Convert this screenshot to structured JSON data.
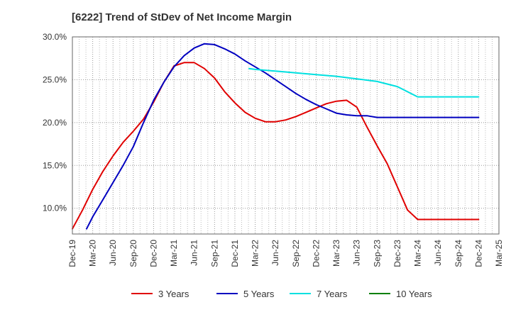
{
  "chart_data": {
    "type": "line",
    "title": "[6222]  Trend of StDev of Net Income Margin",
    "x_ticks": [
      "Dec-19",
      "Mar-20",
      "Jun-20",
      "Sep-20",
      "Dec-20",
      "Mar-21",
      "Jun-21",
      "Sep-21",
      "Dec-21",
      "Mar-22",
      "Jun-22",
      "Sep-22",
      "Dec-22",
      "Mar-23",
      "Jun-23",
      "Sep-23",
      "Dec-23",
      "Mar-24",
      "Jun-24",
      "Sep-24",
      "Dec-24",
      "Mar-25"
    ],
    "y_ticks": [
      "10.0%",
      "15.0%",
      "20.0%",
      "25.0%",
      "30.0%"
    ],
    "y_tick_values": [
      10,
      15,
      20,
      25,
      30
    ],
    "ylim": [
      7,
      30
    ],
    "xlim": [
      0,
      21
    ],
    "grid": true,
    "legend_position": "bottom",
    "series": [
      {
        "name": "3 Years",
        "color": "#e00000",
        "x": [
          0,
          0.5,
          1,
          1.5,
          2,
          2.5,
          3,
          3.5,
          4,
          4.5,
          5,
          5.5,
          6,
          6.5,
          7,
          7.5,
          8,
          8.5,
          9,
          9.5,
          10,
          10.5,
          11,
          11.5,
          12,
          12.5,
          13,
          13.5,
          14,
          14.5,
          15,
          15.5,
          16,
          16.5,
          17,
          17.5,
          18,
          18.5,
          19,
          19.5,
          20
        ],
        "values": [
          7.6,
          9.8,
          12.2,
          14.3,
          16.1,
          17.7,
          19.0,
          20.4,
          22.4,
          24.7,
          26.6,
          27.0,
          27.0,
          26.3,
          25.2,
          23.6,
          22.3,
          21.2,
          20.5,
          20.1,
          20.1,
          20.3,
          20.7,
          21.2,
          21.7,
          22.2,
          22.5,
          22.6,
          21.8,
          19.5,
          17.3,
          15.2,
          12.5,
          9.8,
          8.7,
          8.7,
          8.7,
          8.7,
          8.7,
          8.7,
          8.7
        ]
      },
      {
        "name": "5 Years",
        "color": "#0000c0",
        "x": [
          0.7,
          1,
          1.5,
          2,
          2.5,
          3,
          3.5,
          4,
          4.5,
          5,
          5.5,
          6,
          6.5,
          7,
          7.5,
          8,
          8.5,
          9,
          9.5,
          10,
          10.5,
          11,
          11.5,
          12,
          12.5,
          13,
          13.5,
          14,
          14.5,
          15,
          15.5,
          16,
          16.5,
          17,
          17.5,
          18,
          18.5,
          19,
          19.5,
          20
        ],
        "values": [
          7.6,
          9.0,
          11.0,
          13.0,
          15.0,
          17.2,
          20.0,
          22.6,
          24.7,
          26.5,
          27.8,
          28.7,
          29.2,
          29.1,
          28.6,
          28.0,
          27.2,
          26.5,
          25.8,
          25.0,
          24.2,
          23.4,
          22.7,
          22.1,
          21.6,
          21.1,
          20.9,
          20.8,
          20.8,
          20.6,
          20.6,
          20.6,
          20.6,
          20.6,
          20.6,
          20.6,
          20.6,
          20.6,
          20.6,
          20.6
        ]
      },
      {
        "name": "7 Years",
        "color": "#00e0e0",
        "x": [
          8.7,
          9,
          10,
          11,
          12,
          13,
          14,
          15,
          16,
          17,
          18,
          19,
          20
        ],
        "values": [
          26.3,
          26.2,
          26.0,
          25.8,
          25.6,
          25.4,
          25.1,
          24.8,
          24.2,
          23.0,
          23.0,
          23.0,
          23.0
        ]
      },
      {
        "name": "10 Years",
        "color": "#008000",
        "x": [],
        "values": []
      }
    ]
  }
}
